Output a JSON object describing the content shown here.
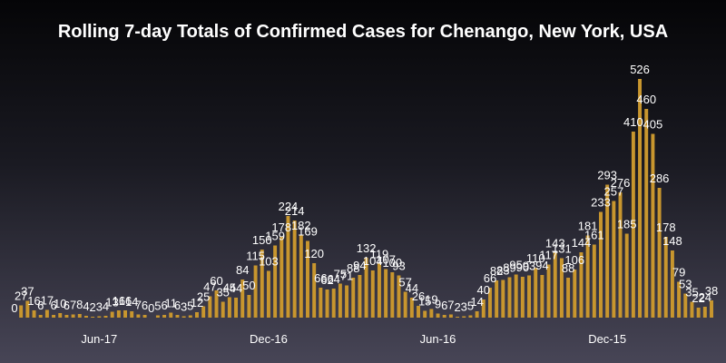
{
  "chart_data": {
    "type": "bar",
    "title": "Rolling 7-day Totals of Confirmed Cases for Chenango, New York, USA",
    "xlabel": "",
    "ylabel": "",
    "bar_color": "#c8962e",
    "ylim": [
      0,
      560
    ],
    "x_tick_labels": [
      "Jun-17",
      "Dec-16",
      "Jun-16",
      "Dec-15"
    ],
    "x_tick_indices": [
      13,
      39,
      65,
      91
    ],
    "grid": false,
    "legend": "none",
    "values": [
      0,
      27,
      37,
      16,
      6,
      17,
      6,
      10,
      6,
      7,
      8,
      4,
      2,
      3,
      4,
      13,
      16,
      16,
      14,
      7,
      6,
      0,
      5,
      6,
      11,
      6,
      3,
      5,
      12,
      25,
      47,
      60,
      35,
      45,
      44,
      84,
      50,
      115,
      150,
      103,
      159,
      178,
      224,
      214,
      182,
      169,
      120,
      66,
      62,
      64,
      75,
      71,
      88,
      94,
      132,
      104,
      119,
      107,
      100,
      93,
      57,
      44,
      26,
      15,
      19,
      9,
      6,
      7,
      2,
      3,
      5,
      14,
      40,
      66,
      82,
      83,
      89,
      95,
      90,
      93,
      110,
      94,
      117,
      143,
      131,
      88,
      106,
      144,
      181,
      161,
      233,
      293,
      257,
      276,
      185,
      410,
      526,
      460,
      405,
      286,
      178,
      148,
      79,
      53,
      35,
      22,
      24,
      38
    ]
  }
}
